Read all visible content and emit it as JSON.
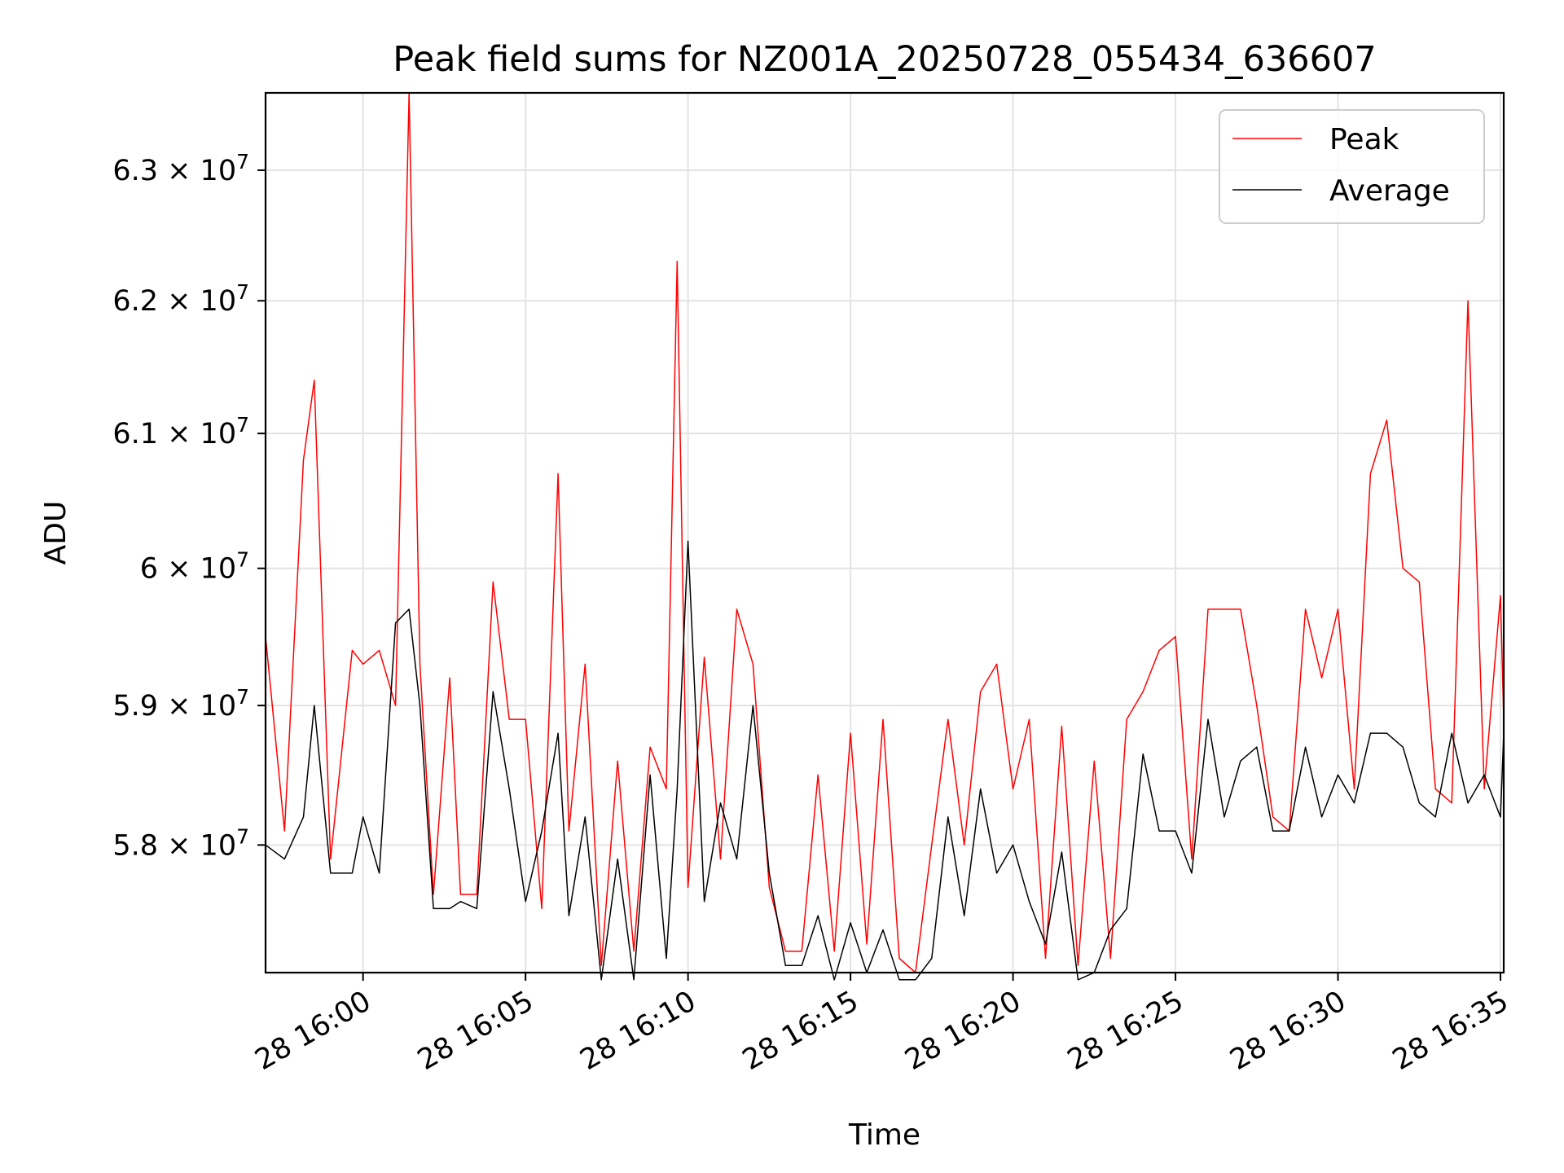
{
  "chart_data": {
    "type": "line",
    "title": "Peak field sums for NZ001A_20250728_055434_636607",
    "xlabel": "Time",
    "ylabel": "ADU",
    "y_scale": "log",
    "xlim": [
      "2025-07-28 15:57:00",
      "2025-07-28 16:35:06"
    ],
    "ylim": [
      57100000,
      63600000
    ],
    "grid": true,
    "legend_position": "top-right",
    "x_ticks": [
      {
        "value": "2025-07-28 16:00:00",
        "label": "28 16:00"
      },
      {
        "value": "2025-07-28 16:05:00",
        "label": "28 16:05"
      },
      {
        "value": "2025-07-28 16:10:00",
        "label": "28 16:10"
      },
      {
        "value": "2025-07-28 16:15:00",
        "label": "28 16:15"
      },
      {
        "value": "2025-07-28 16:20:00",
        "label": "28 16:20"
      },
      {
        "value": "2025-07-28 16:25:00",
        "label": "28 16:25"
      },
      {
        "value": "2025-07-28 16:30:00",
        "label": "28 16:30"
      },
      {
        "value": "2025-07-28 16:35:00",
        "label": "28 16:35"
      }
    ],
    "y_ticks": [
      {
        "value": 58000000,
        "mantissa": "5.8",
        "exponent": "7"
      },
      {
        "value": 59000000,
        "mantissa": "5.9",
        "exponent": "7"
      },
      {
        "value": 60000000,
        "mantissa": "6",
        "exponent": "7"
      },
      {
        "value": 61000000,
        "mantissa": "6.1",
        "exponent": "7"
      },
      {
        "value": 62000000,
        "mantissa": "6.2",
        "exponent": "7"
      },
      {
        "value": 63000000,
        "mantissa": "6.3",
        "exponent": "7"
      }
    ],
    "x": [
      "2025-07-28 15:57:00",
      "2025-07-28 15:57:35",
      "2025-07-28 15:58:10",
      "2025-07-28 15:58:30",
      "2025-07-28 15:59:00",
      "2025-07-28 15:59:40",
      "2025-07-28 16:00:00",
      "2025-07-28 16:00:30",
      "2025-07-28 16:01:00",
      "2025-07-28 16:01:25",
      "2025-07-28 16:01:45",
      "2025-07-28 16:02:10",
      "2025-07-28 16:02:40",
      "2025-07-28 16:03:00",
      "2025-07-28 16:03:30",
      "2025-07-28 16:04:00",
      "2025-07-28 16:04:30",
      "2025-07-28 16:05:00",
      "2025-07-28 16:05:30",
      "2025-07-28 16:06:00",
      "2025-07-28 16:06:20",
      "2025-07-28 16:06:50",
      "2025-07-28 16:07:20",
      "2025-07-28 16:07:50",
      "2025-07-28 16:08:20",
      "2025-07-28 16:08:50",
      "2025-07-28 16:09:20",
      "2025-07-28 16:09:40",
      "2025-07-28 16:10:00",
      "2025-07-28 16:10:30",
      "2025-07-28 16:11:00",
      "2025-07-28 16:11:30",
      "2025-07-28 16:12:00",
      "2025-07-28 16:12:30",
      "2025-07-28 16:13:00",
      "2025-07-28 16:13:30",
      "2025-07-28 16:14:00",
      "2025-07-28 16:14:30",
      "2025-07-28 16:15:00",
      "2025-07-28 16:15:30",
      "2025-07-28 16:16:00",
      "2025-07-28 16:16:30",
      "2025-07-28 16:17:00",
      "2025-07-28 16:17:30",
      "2025-07-28 16:18:00",
      "2025-07-28 16:18:30",
      "2025-07-28 16:19:00",
      "2025-07-28 16:19:30",
      "2025-07-28 16:20:00",
      "2025-07-28 16:20:30",
      "2025-07-28 16:21:00",
      "2025-07-28 16:21:30",
      "2025-07-28 16:22:00",
      "2025-07-28 16:22:30",
      "2025-07-28 16:23:00",
      "2025-07-28 16:23:30",
      "2025-07-28 16:24:00",
      "2025-07-28 16:24:30",
      "2025-07-28 16:25:00",
      "2025-07-28 16:25:30",
      "2025-07-28 16:26:00",
      "2025-07-28 16:26:30",
      "2025-07-28 16:27:00",
      "2025-07-28 16:27:30",
      "2025-07-28 16:28:00",
      "2025-07-28 16:28:30",
      "2025-07-28 16:29:00",
      "2025-07-28 16:29:30",
      "2025-07-28 16:30:00",
      "2025-07-28 16:30:30",
      "2025-07-28 16:31:00",
      "2025-07-28 16:31:30",
      "2025-07-28 16:32:00",
      "2025-07-28 16:32:30",
      "2025-07-28 16:33:00",
      "2025-07-28 16:33:30",
      "2025-07-28 16:34:00",
      "2025-07-28 16:34:30",
      "2025-07-28 16:35:00",
      "2025-07-28 16:35:06"
    ],
    "series": [
      {
        "name": "Peak",
        "color": "#ff0000",
        "values": [
          59500000,
          58100000,
          60800000,
          61400000,
          57900000,
          59400000,
          59300000,
          59400000,
          59000000,
          63600000,
          59300000,
          57650000,
          59200000,
          57650000,
          57650000,
          59900000,
          58900000,
          58900000,
          57550000,
          60700000,
          58100000,
          59300000,
          57150000,
          58600000,
          57250000,
          58700000,
          58400000,
          62300000,
          57700000,
          59350000,
          57900000,
          59700000,
          59300000,
          57700000,
          57250000,
          57250000,
          58500000,
          57250000,
          58800000,
          57300000,
          58900000,
          57200000,
          57100000,
          58000000,
          58900000,
          58000000,
          59100000,
          59300000,
          58400000,
          58900000,
          57200000,
          58850000,
          57150000,
          58600000,
          57200000,
          58900000,
          59100000,
          59400000,
          59500000,
          57900000,
          59700000,
          59700000,
          59700000,
          59000000,
          58200000,
          58100000,
          59700000,
          59200000,
          59700000,
          58400000,
          60700000,
          61100000,
          60000000,
          59900000,
          58400000,
          58300000,
          62000000,
          58400000,
          59800000,
          58900000
        ]
      },
      {
        "name": "Average",
        "color": "#000000",
        "values": [
          58000000,
          57900000,
          58200000,
          59000000,
          57800000,
          57800000,
          58200000,
          57800000,
          59600000,
          59700000,
          59000000,
          57550000,
          57550000,
          57600000,
          57550000,
          59100000,
          58400000,
          57600000,
          58100000,
          58800000,
          57500000,
          58200000,
          57050000,
          57900000,
          57050000,
          58500000,
          57200000,
          58400000,
          60200000,
          57600000,
          58300000,
          57900000,
          59000000,
          57800000,
          57150000,
          57150000,
          57500000,
          57050000,
          57450000,
          57100000,
          57400000,
          57050000,
          57050000,
          57200000,
          58200000,
          57500000,
          58400000,
          57800000,
          58000000,
          57600000,
          57300000,
          57950000,
          57050000,
          57100000,
          57400000,
          57550000,
          58650000,
          58100000,
          58100000,
          57800000,
          58900000,
          58200000,
          58600000,
          58700000,
          58100000,
          58100000,
          58700000,
          58200000,
          58500000,
          58300000,
          58800000,
          58800000,
          58700000,
          58300000,
          58200000,
          58800000,
          58300000,
          58500000,
          58200000,
          58800000
        ]
      }
    ]
  }
}
